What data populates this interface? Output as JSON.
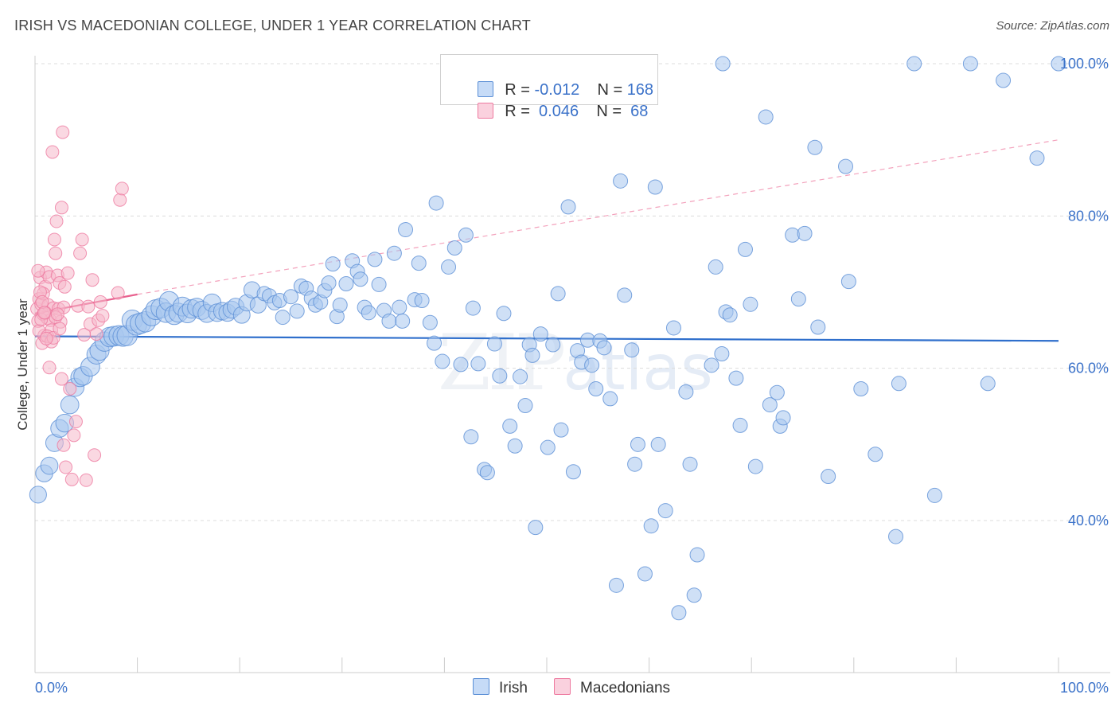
{
  "header": {
    "title": "IRISH VS MACEDONIAN COLLEGE, UNDER 1 YEAR CORRELATION CHART",
    "source": "Source: ZipAtlas.com"
  },
  "legend": {
    "rows": [
      {
        "r_label": "R =",
        "r_value": "-0.012",
        "n_label": "N =",
        "n_value": "168",
        "color": "#a8c6ef"
      },
      {
        "r_label": "R =",
        "r_value": "0.046",
        "n_label": "N =",
        "n_value": "68",
        "color": "#f6b8cb"
      }
    ]
  },
  "bottom_legend": [
    {
      "label": "Irish",
      "color": "#a8c6ef"
    },
    {
      "label": "Macedonians",
      "color": "#f6b8cb"
    }
  ],
  "watermark": {
    "zip": "ZIP",
    "atlas": "atlas"
  },
  "chart_data": {
    "type": "scatter",
    "title": "IRISH VS MACEDONIAN COLLEGE, UNDER 1 YEAR CORRELATION CHART",
    "xlabel": "",
    "ylabel": "College, Under 1 year",
    "xlim": [
      0,
      100
    ],
    "ylim": [
      20,
      102
    ],
    "x_tick_labels": [
      "0.0%",
      "100.0%"
    ],
    "y_ticks": [
      40,
      60,
      80,
      100
    ],
    "y_tick_labels": [
      "40.0%",
      "60.0%",
      "80.0%",
      "100.0%"
    ],
    "grid": "horizontal dashed",
    "legend_position": "top-center",
    "series": [
      {
        "name": "Irish",
        "color": "#5b8fd6",
        "fill": "#a8c6ef",
        "trend": {
          "x": [
            0,
            100
          ],
          "y": [
            64.2,
            63.6
          ],
          "style": "solid"
        },
        "points": [
          [
            0.3,
            43.4
          ],
          [
            0.9,
            46.2
          ],
          [
            1.4,
            47.2
          ],
          [
            1.9,
            50.2
          ],
          [
            2.4,
            52.1
          ],
          [
            2.9,
            52.8
          ],
          [
            3.4,
            55.2
          ],
          [
            3.9,
            57.5
          ],
          [
            4.4,
            58.8
          ],
          [
            4.7,
            59.0
          ],
          [
            5.4,
            60.2
          ],
          [
            6.0,
            61.8
          ],
          [
            6.3,
            62.3
          ],
          [
            6.8,
            63.5
          ],
          [
            7.3,
            64.1
          ],
          [
            7.7,
            64.2
          ],
          [
            8.2,
            64.3
          ],
          [
            8.6,
            64.2
          ],
          [
            9.0,
            64.3
          ],
          [
            9.5,
            66.3
          ],
          [
            9.9,
            65.7
          ],
          [
            10.3,
            65.9
          ],
          [
            10.8,
            66.1
          ],
          [
            11.4,
            66.9
          ],
          [
            11.8,
            67.7
          ],
          [
            12.3,
            67.9
          ],
          [
            12.8,
            67.3
          ],
          [
            13.1,
            68.8
          ],
          [
            13.6,
            67.0
          ],
          [
            14.0,
            67.3
          ],
          [
            14.4,
            68.1
          ],
          [
            14.9,
            67.2
          ],
          [
            15.3,
            67.8
          ],
          [
            15.8,
            68.0
          ],
          [
            16.3,
            67.6
          ],
          [
            16.8,
            67.2
          ],
          [
            17.3,
            68.6
          ],
          [
            17.8,
            67.3
          ],
          [
            18.3,
            67.5
          ],
          [
            18.8,
            67.3
          ],
          [
            19.2,
            67.7
          ],
          [
            19.6,
            68.1
          ],
          [
            20.2,
            67.0
          ],
          [
            20.7,
            68.6
          ],
          [
            21.2,
            70.3
          ],
          [
            21.8,
            68.3
          ],
          [
            22.4,
            69.8
          ],
          [
            22.9,
            69.5
          ],
          [
            23.4,
            68.6
          ],
          [
            23.9,
            68.9
          ],
          [
            24.2,
            66.7
          ],
          [
            25.0,
            69.4
          ],
          [
            25.6,
            67.5
          ],
          [
            26.0,
            70.8
          ],
          [
            26.5,
            70.5
          ],
          [
            27.0,
            69.2
          ],
          [
            27.4,
            68.3
          ],
          [
            27.9,
            68.7
          ],
          [
            28.3,
            70.2
          ],
          [
            28.7,
            71.2
          ],
          [
            29.1,
            73.7
          ],
          [
            29.5,
            66.8
          ],
          [
            29.8,
            68.3
          ],
          [
            30.4,
            71.1
          ],
          [
            31.0,
            74.1
          ],
          [
            31.5,
            72.7
          ],
          [
            31.8,
            71.7
          ],
          [
            32.2,
            68.0
          ],
          [
            32.6,
            67.3
          ],
          [
            33.2,
            74.3
          ],
          [
            33.6,
            71.0
          ],
          [
            34.1,
            67.6
          ],
          [
            34.6,
            66.2
          ],
          [
            35.1,
            75.1
          ],
          [
            35.6,
            68.0
          ],
          [
            35.9,
            66.2
          ],
          [
            36.2,
            78.2
          ],
          [
            37.1,
            69.0
          ],
          [
            37.5,
            73.8
          ],
          [
            37.8,
            68.9
          ],
          [
            38.6,
            66.0
          ],
          [
            39.0,
            63.3
          ],
          [
            39.2,
            81.7
          ],
          [
            39.8,
            60.9
          ],
          [
            40.4,
            73.3
          ],
          [
            41.0,
            75.8
          ],
          [
            41.6,
            60.5
          ],
          [
            42.1,
            77.5
          ],
          [
            42.6,
            51.0
          ],
          [
            42.8,
            67.9
          ],
          [
            43.3,
            60.6
          ],
          [
            43.9,
            46.7
          ],
          [
            44.2,
            46.3
          ],
          [
            44.9,
            63.2
          ],
          [
            45.4,
            59.0
          ],
          [
            45.8,
            67.2
          ],
          [
            46.4,
            52.4
          ],
          [
            46.9,
            49.8
          ],
          [
            47.4,
            58.9
          ],
          [
            47.9,
            55.1
          ],
          [
            48.3,
            63.1
          ],
          [
            48.6,
            61.7
          ],
          [
            48.9,
            39.1
          ],
          [
            49.4,
            64.5
          ],
          [
            50.1,
            49.6
          ],
          [
            50.6,
            63.1
          ],
          [
            51.1,
            69.8
          ],
          [
            51.4,
            51.9
          ],
          [
            52.1,
            81.2
          ],
          [
            52.6,
            46.4
          ],
          [
            53.0,
            62.3
          ],
          [
            53.4,
            60.8
          ],
          [
            54.0,
            63.7
          ],
          [
            54.4,
            60.4
          ],
          [
            54.8,
            57.3
          ],
          [
            55.2,
            63.6
          ],
          [
            55.6,
            62.7
          ],
          [
            56.2,
            56.0
          ],
          [
            56.8,
            31.5
          ],
          [
            57.2,
            84.6
          ],
          [
            57.6,
            69.6
          ],
          [
            58.3,
            62.4
          ],
          [
            58.6,
            47.4
          ],
          [
            58.9,
            50.0
          ],
          [
            59.6,
            33.0
          ],
          [
            60.2,
            39.3
          ],
          [
            60.6,
            83.8
          ],
          [
            60.9,
            50.0
          ],
          [
            61.6,
            41.3
          ],
          [
            62.4,
            65.3
          ],
          [
            62.9,
            27.9
          ],
          [
            63.6,
            56.9
          ],
          [
            64.0,
            47.4
          ],
          [
            64.4,
            30.2
          ],
          [
            64.7,
            35.5
          ],
          [
            66.1,
            60.4
          ],
          [
            66.5,
            73.3
          ],
          [
            67.1,
            61.9
          ],
          [
            67.5,
            67.4
          ],
          [
            67.9,
            67.0
          ],
          [
            68.5,
            58.7
          ],
          [
            68.9,
            52.5
          ],
          [
            69.4,
            75.6
          ],
          [
            69.9,
            68.4
          ],
          [
            70.4,
            47.1
          ],
          [
            71.4,
            93.0
          ],
          [
            71.8,
            55.2
          ],
          [
            72.5,
            56.8
          ],
          [
            72.8,
            52.4
          ],
          [
            73.1,
            53.5
          ],
          [
            74.0,
            77.5
          ],
          [
            74.6,
            69.1
          ],
          [
            75.2,
            77.7
          ],
          [
            76.2,
            89.0
          ],
          [
            76.5,
            65.4
          ],
          [
            77.5,
            45.8
          ],
          [
            79.2,
            86.5
          ],
          [
            79.5,
            71.4
          ],
          [
            80.7,
            57.3
          ],
          [
            82.1,
            48.7
          ],
          [
            84.1,
            37.9
          ],
          [
            84.4,
            58.0
          ],
          [
            85.9,
            100.0
          ],
          [
            87.9,
            43.3
          ],
          [
            91.4,
            100.0
          ],
          [
            93.1,
            58.0
          ],
          [
            94.6,
            97.8
          ],
          [
            97.9,
            87.6
          ],
          [
            100.0,
            100.0
          ],
          [
            67.2,
            100.0
          ]
        ]
      },
      {
        "name": "Macedonians",
        "color": "#ee7aa0",
        "fill": "#f6b8cb",
        "trend": {
          "x": [
            0,
            10
          ],
          "y": [
            67.2,
            69.7
          ],
          "style": "solid",
          "extended": {
            "x": [
              10,
              100
            ],
            "y": [
              69.7,
              90.0
            ],
            "style": "dashed"
          }
        },
        "points": [
          [
            0.2,
            67.8
          ],
          [
            0.3,
            66.2
          ],
          [
            0.4,
            69.1
          ],
          [
            0.5,
            71.9
          ],
          [
            0.6,
            68.4
          ],
          [
            0.7,
            63.3
          ],
          [
            0.8,
            67.1
          ],
          [
            0.9,
            64.3
          ],
          [
            1.0,
            70.7
          ],
          [
            1.1,
            72.6
          ],
          [
            1.2,
            66.6
          ],
          [
            1.3,
            68.3
          ],
          [
            1.4,
            72.0
          ],
          [
            1.5,
            66.3
          ],
          [
            1.6,
            65.0
          ],
          [
            1.7,
            88.4
          ],
          [
            1.8,
            67.9
          ],
          [
            1.9,
            76.9
          ],
          [
            2.0,
            75.1
          ],
          [
            2.1,
            79.3
          ],
          [
            2.2,
            72.2
          ],
          [
            2.3,
            67.8
          ],
          [
            2.4,
            71.2
          ],
          [
            2.5,
            66.1
          ],
          [
            2.6,
            81.1
          ],
          [
            2.7,
            91.0
          ],
          [
            2.8,
            68.0
          ],
          [
            2.9,
            70.7
          ],
          [
            0.4,
            64.9
          ],
          [
            0.6,
            66.4
          ],
          [
            0.8,
            69.8
          ],
          [
            1.0,
            67.3
          ],
          [
            1.2,
            64.2
          ],
          [
            1.4,
            60.1
          ],
          [
            1.6,
            63.5
          ],
          [
            1.8,
            64.0
          ],
          [
            2.0,
            66.7
          ],
          [
            2.2,
            67.1
          ],
          [
            2.4,
            65.2
          ],
          [
            2.6,
            58.6
          ],
          [
            2.8,
            49.9
          ],
          [
            3.0,
            47.0
          ],
          [
            3.2,
            72.5
          ],
          [
            3.4,
            57.3
          ],
          [
            3.6,
            45.4
          ],
          [
            3.8,
            51.2
          ],
          [
            4.0,
            53.0
          ],
          [
            4.2,
            68.2
          ],
          [
            4.4,
            75.1
          ],
          [
            4.6,
            76.9
          ],
          [
            4.8,
            64.4
          ],
          [
            5.0,
            45.3
          ],
          [
            5.2,
            68.1
          ],
          [
            5.4,
            65.8
          ],
          [
            5.6,
            71.6
          ],
          [
            5.8,
            48.6
          ],
          [
            6.0,
            64.5
          ],
          [
            6.2,
            66.3
          ],
          [
            6.4,
            68.7
          ],
          [
            6.6,
            66.9
          ],
          [
            0.3,
            72.8
          ],
          [
            0.5,
            70.0
          ],
          [
            0.7,
            68.7
          ],
          [
            0.9,
            67.3
          ],
          [
            1.1,
            63.9
          ],
          [
            8.3,
            82.1
          ],
          [
            8.5,
            83.6
          ],
          [
            8.1,
            69.9
          ]
        ]
      }
    ]
  }
}
